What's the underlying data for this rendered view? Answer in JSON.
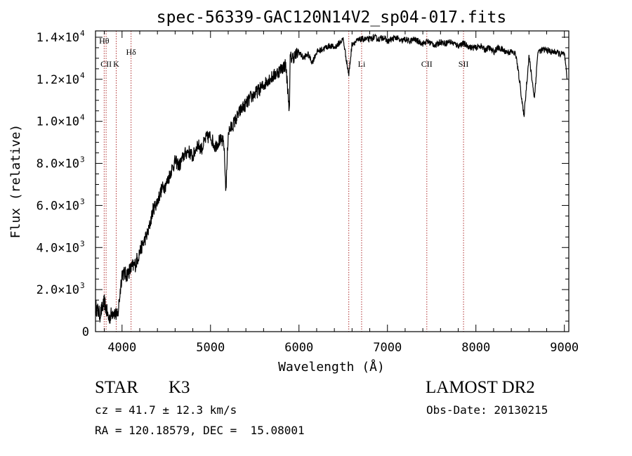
{
  "chart_data": {
    "type": "line",
    "title": "spec-56339-GAC120N14V2_sp04-017.fits",
    "xlabel": "Wavelength (Å)",
    "ylabel": "Flux (relative)",
    "xlim": [
      3700,
      9050
    ],
    "ylim": [
      0,
      14300
    ],
    "x_ticks": [
      {
        "value": 4000,
        "label": "4000"
      },
      {
        "value": 5000,
        "label": "5000"
      },
      {
        "value": 6000,
        "label": "6000"
      },
      {
        "value": 7000,
        "label": "7000"
      },
      {
        "value": 8000,
        "label": "8000"
      },
      {
        "value": 9000,
        "label": "9000"
      }
    ],
    "y_ticks": [
      {
        "value": 0,
        "label": "0"
      },
      {
        "value": 2000,
        "mantissa": "2.0",
        "exponent": "3"
      },
      {
        "value": 4000,
        "mantissa": "4.0",
        "exponent": "3"
      },
      {
        "value": 6000,
        "mantissa": "6.0",
        "exponent": "3"
      },
      {
        "value": 8000,
        "mantissa": "8.0",
        "exponent": "3"
      },
      {
        "value": 10000,
        "mantissa": "1.0",
        "exponent": "4"
      },
      {
        "value": 12000,
        "mantissa": "1.2",
        "exponent": "4"
      },
      {
        "value": 14000,
        "mantissa": "1.4",
        "exponent": "4"
      }
    ],
    "series": [
      {
        "x": [
          3700,
          3750,
          3800,
          3850,
          3900,
          3950,
          4000,
          4050,
          4100,
          4150,
          4200,
          4250,
          4300,
          4350,
          4400,
          4450,
          4500,
          4550,
          4600,
          4650,
          4700,
          4750,
          4800,
          4850,
          4900,
          4950,
          5000,
          5050,
          5100,
          5150,
          5175,
          5200,
          5250,
          5300,
          5350,
          5400,
          5450,
          5500,
          5550,
          5600,
          5650,
          5700,
          5750,
          5800,
          5850,
          5893,
          5900,
          5950,
          6000,
          6050,
          6100,
          6150,
          6200,
          6250,
          6300,
          6350,
          6400,
          6450,
          6500,
          6563,
          6600,
          6650,
          6700,
          6750,
          6800,
          6850,
          6900,
          6950,
          7000,
          7050,
          7100,
          7150,
          7200,
          7250,
          7300,
          7350,
          7400,
          7450,
          7500,
          7550,
          7600,
          7650,
          7700,
          7750,
          7800,
          7850,
          7900,
          7950,
          8000,
          8050,
          8100,
          8150,
          8200,
          8250,
          8300,
          8350,
          8400,
          8450,
          8498,
          8542,
          8600,
          8662,
          8700,
          8750,
          8800,
          8850,
          8900,
          8950,
          9000,
          9030
        ],
        "y": [
          1200,
          800,
          1400,
          600,
          1000,
          700,
          2800,
          2700,
          3000,
          3200,
          3800,
          4300,
          4800,
          5800,
          6200,
          6800,
          7000,
          7600,
          8100,
          7900,
          8400,
          8600,
          8300,
          8900,
          8700,
          9200,
          9300,
          8800,
          9100,
          9000,
          6700,
          9500,
          9800,
          10200,
          10600,
          10800,
          11100,
          11300,
          11500,
          11700,
          12000,
          12100,
          12300,
          12500,
          12700,
          10500,
          13000,
          13100,
          13300,
          13000,
          13200,
          12800,
          13300,
          13400,
          13500,
          13600,
          13500,
          13700,
          13900,
          12200,
          13700,
          13800,
          13900,
          13900,
          13900,
          14000,
          13900,
          14000,
          13800,
          13900,
          14000,
          13800,
          13900,
          13800,
          13900,
          13800,
          13700,
          13800,
          13700,
          13600,
          13800,
          13700,
          13800,
          13700,
          13600,
          13700,
          13600,
          13500,
          13500,
          13600,
          13400,
          13500,
          13300,
          13500,
          13400,
          13300,
          13300,
          13200,
          11800,
          10200,
          13100,
          11100,
          13300,
          13400,
          13400,
          13300,
          13300,
          13200,
          13200,
          12000
        ]
      }
    ],
    "lines": [
      {
        "label": "Hθ",
        "x": 3798
      },
      {
        "label": "CII",
        "x": 3820
      },
      {
        "label": "K",
        "x": 3934
      },
      {
        "label": "Hδ",
        "x": 4102
      },
      {
        "label": "",
        "x": 6563
      },
      {
        "label": "Li",
        "x": 6708
      },
      {
        "label": "CII",
        "x": 7445
      },
      {
        "label": "SII",
        "x": 7860
      }
    ]
  },
  "info": {
    "object_class": "STAR",
    "subclass": "K3",
    "survey": "LAMOST DR2",
    "redshift": "cz = 41.7 ± 12.3 km/s",
    "obs_date": "Obs-Date: 20130215",
    "coordinates": "RA = 120.18579, DEC =  15.08001"
  }
}
